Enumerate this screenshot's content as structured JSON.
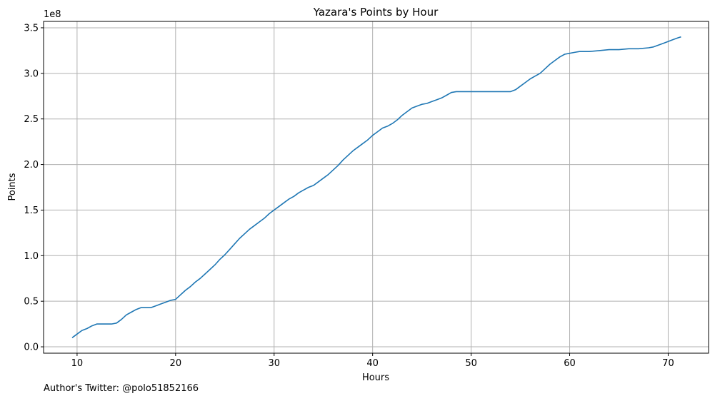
{
  "chart_data": {
    "type": "line",
    "title": "Yazara's Points by Hour",
    "xlabel": "Hours",
    "ylabel": "Points",
    "y_offset_label": "1e8",
    "xlim": [
      6.6,
      74.1
    ],
    "ylim": [
      -0.07,
      3.57
    ],
    "y_scale_factor_note": "values in units of 1e8 points",
    "xticks": [
      10,
      20,
      30,
      40,
      50,
      60,
      70
    ],
    "yticks": [
      0.0,
      0.5,
      1.0,
      1.5,
      2.0,
      2.5,
      3.0,
      3.5
    ],
    "xtick_labels": [
      "10",
      "20",
      "30",
      "40",
      "50",
      "60",
      "70"
    ],
    "ytick_labels": [
      "0.0",
      "0.5",
      "1.0",
      "1.5",
      "2.0",
      "2.5",
      "3.0",
      "3.5"
    ],
    "grid": true,
    "line_color": "#1f77b4",
    "series": [
      {
        "x": [
          9.5,
          10,
          10.5,
          11,
          11.5,
          12,
          12.5,
          13,
          13.5,
          14,
          14.5,
          15,
          15.5,
          16,
          16.5,
          17,
          17.5,
          18,
          18.5,
          19,
          19.5,
          20,
          20.5,
          21,
          21.5,
          22,
          22.5,
          23,
          23.5,
          24,
          24.5,
          25,
          25.5,
          26,
          26.5,
          27,
          27.5,
          28,
          28.5,
          29,
          29.5,
          30,
          30.5,
          31,
          31.5,
          32,
          32.5,
          33,
          33.5,
          34,
          34.5,
          35,
          35.5,
          36,
          36.5,
          37,
          37.5,
          38,
          38.5,
          39,
          39.5,
          40,
          40.5,
          41,
          41.5,
          42,
          42.5,
          43,
          43.5,
          44,
          44.5,
          45,
          45.5,
          46,
          46.5,
          47,
          47.5,
          48,
          48.5,
          49,
          50,
          51,
          52,
          53,
          54,
          54.5,
          55,
          55.5,
          56,
          56.5,
          57,
          57.5,
          58,
          58.5,
          59,
          59.5,
          60,
          60.5,
          61,
          62,
          63,
          64,
          65,
          66,
          67,
          68,
          68.5,
          69,
          69.5,
          70,
          70.5,
          71,
          71.3
        ],
        "y": [
          0.1,
          0.14,
          0.18,
          0.2,
          0.23,
          0.25,
          0.25,
          0.25,
          0.25,
          0.26,
          0.3,
          0.35,
          0.38,
          0.41,
          0.43,
          0.43,
          0.43,
          0.45,
          0.47,
          0.49,
          0.51,
          0.52,
          0.57,
          0.62,
          0.66,
          0.71,
          0.75,
          0.8,
          0.85,
          0.9,
          0.96,
          1.01,
          1.07,
          1.13,
          1.19,
          1.24,
          1.29,
          1.33,
          1.37,
          1.41,
          1.46,
          1.5,
          1.54,
          1.58,
          1.62,
          1.65,
          1.69,
          1.72,
          1.75,
          1.77,
          1.81,
          1.85,
          1.89,
          1.94,
          1.99,
          2.05,
          2.1,
          2.15,
          2.19,
          2.23,
          2.27,
          2.32,
          2.36,
          2.4,
          2.42,
          2.45,
          2.49,
          2.54,
          2.58,
          2.62,
          2.64,
          2.66,
          2.67,
          2.69,
          2.71,
          2.73,
          2.76,
          2.79,
          2.8,
          2.8,
          2.8,
          2.8,
          2.8,
          2.8,
          2.8,
          2.82,
          2.86,
          2.9,
          2.94,
          2.97,
          3.0,
          3.05,
          3.1,
          3.14,
          3.18,
          3.21,
          3.22,
          3.23,
          3.24,
          3.24,
          3.25,
          3.26,
          3.26,
          3.27,
          3.27,
          3.28,
          3.29,
          3.31,
          3.33,
          3.35,
          3.37,
          3.39,
          3.4
        ]
      }
    ]
  },
  "footnote": "Author's Twitter: @polo51852166"
}
